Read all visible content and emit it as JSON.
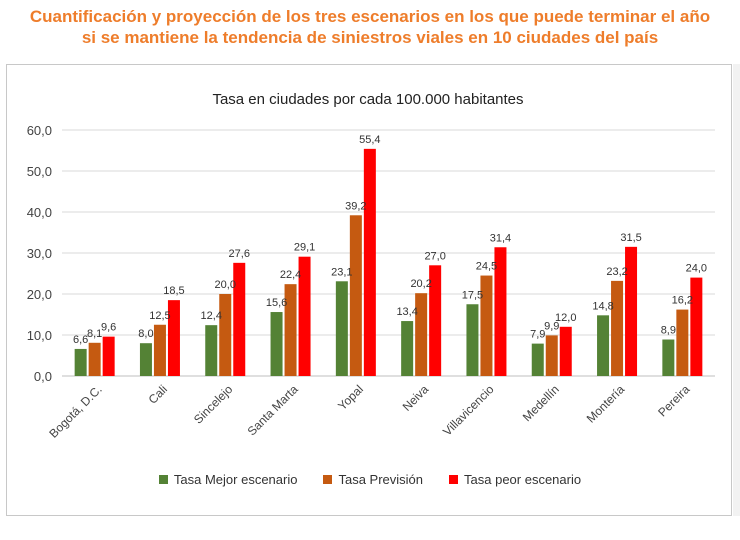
{
  "headline": {
    "line1": "Cuantificación y proyección de los tres escenarios en los que puede terminar el año",
    "line2": "si se mantiene la tendencia de siniestros viales en 10 ciudades del país"
  },
  "chart_data": {
    "type": "bar",
    "title": "Tasa en ciudades por cada 100.000 habitantes",
    "xlabel": "",
    "ylabel": "",
    "ylim": [
      0,
      60
    ],
    "yticks": [
      "0,0",
      "10,0",
      "20,0",
      "30,0",
      "40,0",
      "50,0",
      "60,0"
    ],
    "grid": true,
    "legend_position": "bottom",
    "categories": [
      "Bogotá, D.C.",
      "Cali",
      "Sincelejo",
      "Santa Marta",
      "Yopal",
      "Neiva",
      "Villavicencio",
      "Medellín",
      "Montería",
      "Pereira"
    ],
    "series": [
      {
        "name": "Tasa Mejor escenario",
        "color": "#548235",
        "values": [
          6.6,
          8.0,
          12.4,
          15.6,
          23.1,
          13.4,
          17.5,
          7.9,
          14.8,
          8.9
        ],
        "labels": [
          "6,6",
          "8,0",
          "12,4",
          "15,6",
          "23,1",
          "13,4",
          "17,5",
          "7,9",
          "14,8",
          "8,9"
        ]
      },
      {
        "name": "Tasa Previsión",
        "color": "#c55a11",
        "values": [
          8.1,
          12.5,
          20.0,
          22.4,
          39.2,
          20.2,
          24.5,
          9.9,
          23.2,
          16.2
        ],
        "labels": [
          "8,1",
          "12,5",
          "20,0",
          "22,4",
          "39,2",
          "20,2",
          "24,5",
          "9,9",
          "23,2",
          "16,2"
        ]
      },
      {
        "name": "Tasa peor escenario",
        "color": "#ff0000",
        "values": [
          9.6,
          18.5,
          27.6,
          29.1,
          55.4,
          27.0,
          31.4,
          12.0,
          31.5,
          24.0
        ],
        "labels": [
          "9,6",
          "18,5",
          "27,6",
          "29,1",
          "55,4",
          "27,0",
          "31,4",
          "12,0",
          "31,5",
          "24,0"
        ]
      }
    ]
  }
}
